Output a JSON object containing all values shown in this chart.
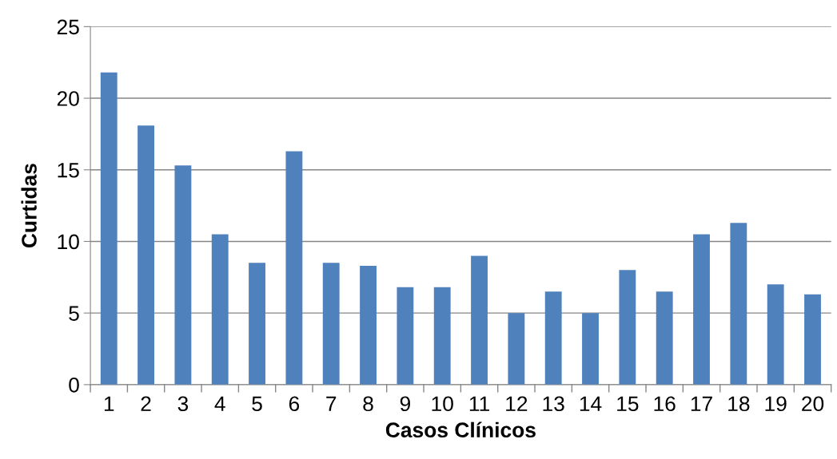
{
  "chart_data": {
    "type": "bar",
    "xlabel": "Casos Clínicos",
    "ylabel": "Curtidas",
    "categories": [
      "1",
      "2",
      "3",
      "4",
      "5",
      "6",
      "7",
      "8",
      "9",
      "10",
      "11",
      "12",
      "13",
      "14",
      "15",
      "16",
      "17",
      "18",
      "19",
      "20"
    ],
    "values": [
      21.8,
      18.1,
      15.3,
      10.5,
      8.5,
      16.3,
      8.5,
      8.3,
      6.8,
      6.8,
      9.0,
      5.0,
      6.5,
      5.0,
      8.0,
      6.5,
      10.5,
      11.3,
      7.0,
      6.3
    ],
    "color": "#4f81bd",
    "ylim": [
      0,
      25
    ],
    "yticks": [
      0,
      5,
      10,
      15,
      20,
      25
    ],
    "grid": "y"
  }
}
